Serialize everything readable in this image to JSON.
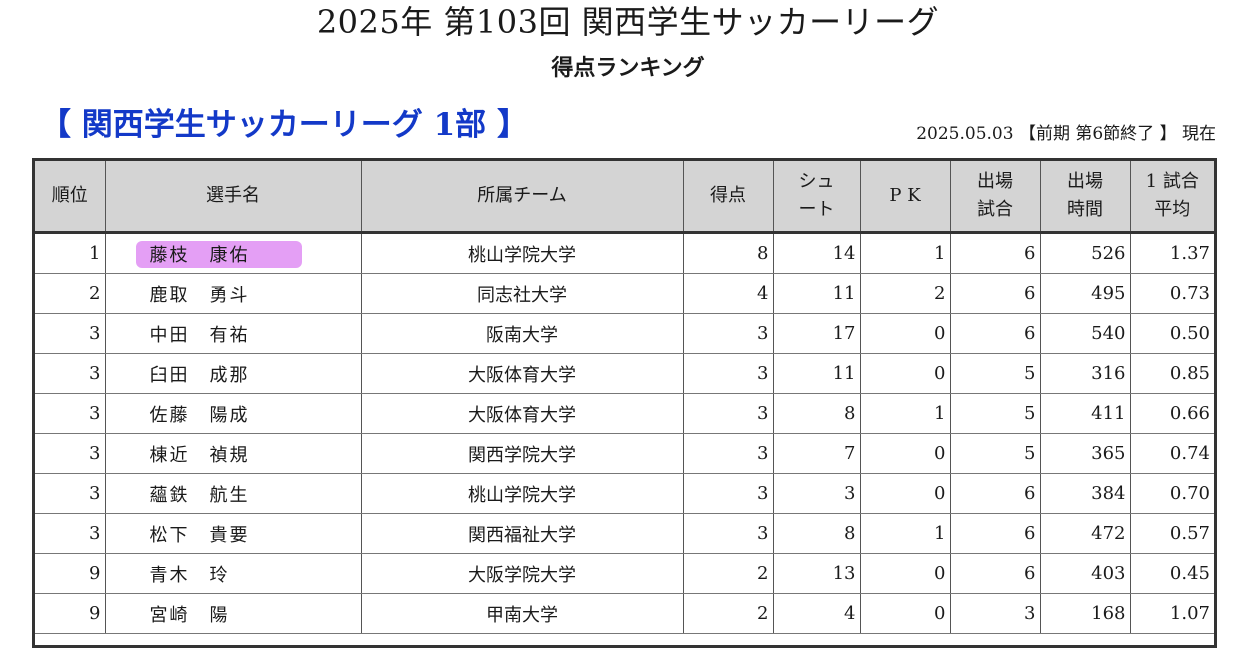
{
  "header": {
    "title": "2025年 第103回 関西学生サッカーリーグ",
    "subtitle": "得点ランキング",
    "division": "【 関西学生サッカーリーグ 1部 】",
    "as_of": "2025.05.03 【前期 第6節終了 】 現在"
  },
  "colors": {
    "division_text": "#1339c8",
    "highlight": "#df8ef3",
    "header_bg": "#d4d4d4"
  },
  "table": {
    "headers": [
      [
        "順位"
      ],
      [
        "選手名"
      ],
      [
        "所属チーム"
      ],
      [
        "得点"
      ],
      [
        "シュ",
        "ート"
      ],
      [
        "P K"
      ],
      [
        "出場",
        "試合"
      ],
      [
        "出場",
        "時間"
      ],
      [
        "1 試合",
        "平均"
      ]
    ],
    "rows": [
      [
        "1",
        "藤枝　康佑",
        "桃山学院大学",
        "8",
        "14",
        "1",
        "6",
        "526",
        "1.37"
      ],
      [
        "2",
        "鹿取　勇斗",
        "同志社大学",
        "4",
        "11",
        "2",
        "6",
        "495",
        "0.73"
      ],
      [
        "3",
        "中田　有祐",
        "阪南大学",
        "3",
        "17",
        "0",
        "6",
        "540",
        "0.50"
      ],
      [
        "3",
        "臼田　成那",
        "大阪体育大学",
        "3",
        "11",
        "0",
        "5",
        "316",
        "0.85"
      ],
      [
        "3",
        "佐藤　陽成",
        "大阪体育大学",
        "3",
        "8",
        "1",
        "5",
        "411",
        "0.66"
      ],
      [
        "3",
        "棟近　禎規",
        "関西学院大学",
        "3",
        "7",
        "0",
        "5",
        "365",
        "0.74"
      ],
      [
        "3",
        "蘊鉄　航生",
        "桃山学院大学",
        "3",
        "3",
        "0",
        "6",
        "384",
        "0.70"
      ],
      [
        "3",
        "松下　貴要",
        "関西福祉大学",
        "3",
        "8",
        "1",
        "6",
        "472",
        "0.57"
      ],
      [
        "9",
        "青木　玲",
        "大阪学院大学",
        "2",
        "13",
        "0",
        "6",
        "403",
        "0.45"
      ],
      [
        "9",
        "宮崎　陽",
        "甲南大学",
        "2",
        "4",
        "0",
        "3",
        "168",
        "1.07"
      ]
    ],
    "highlighted_row": 0
  }
}
